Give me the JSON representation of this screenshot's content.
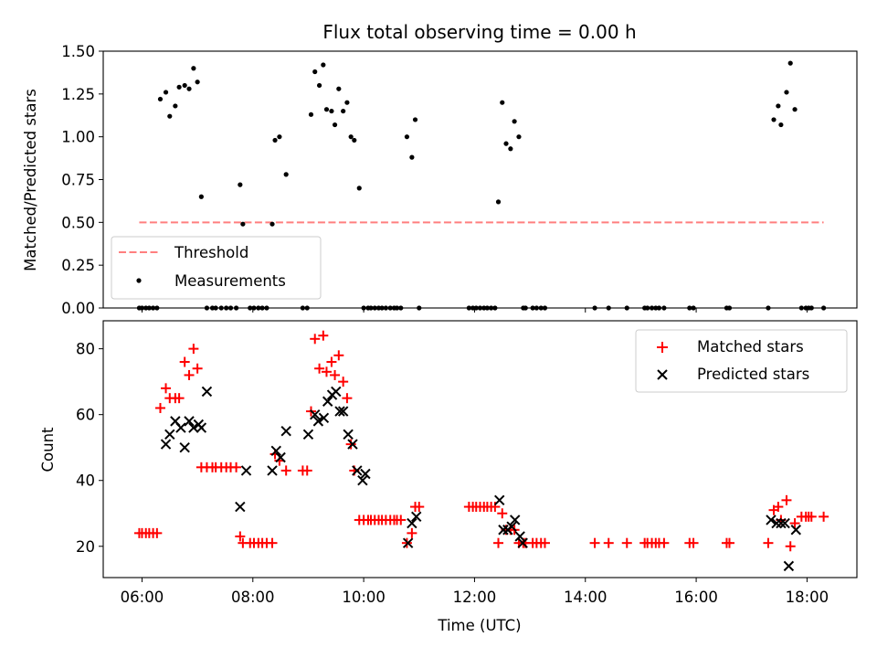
{
  "chart_data": [
    {
      "type": "scatter",
      "title": "Flux total observing time = 0.00 h",
      "xlabel": "",
      "ylabel": "Matched/Predicted stars",
      "xlim": [
        5.3,
        18.9
      ],
      "ylim": [
        0,
        1.5
      ],
      "yticks": [
        0,
        0.25,
        0.5,
        0.75,
        1.0,
        1.25,
        1.5
      ],
      "ytick_labels": [
        "0.00",
        "0.25",
        "0.50",
        "0.75",
        "1.00",
        "1.25",
        "1.50"
      ],
      "threshold": {
        "name": "Threshold",
        "y": 0.5,
        "x_range": [
          5.95,
          18.3
        ],
        "color": "#ff7f7f"
      },
      "series": [
        {
          "name": "Measurements",
          "color": "#000000",
          "x": [
            5.95,
            6.0,
            6.07,
            6.13,
            6.2,
            6.27,
            6.33,
            6.43,
            6.5,
            6.6,
            6.67,
            6.77,
            6.85,
            6.93,
            7.0,
            7.07,
            7.17,
            7.27,
            7.33,
            7.43,
            7.52,
            7.6,
            7.7,
            7.77,
            7.82,
            7.95,
            8.02,
            8.1,
            8.17,
            8.25,
            8.35,
            8.4,
            8.48,
            8.6,
            8.9,
            8.98,
            9.05,
            9.12,
            9.2,
            9.27,
            9.33,
            9.42,
            9.48,
            9.55,
            9.63,
            9.7,
            9.77,
            9.83,
            9.92,
            10.0,
            10.08,
            10.13,
            10.2,
            10.27,
            10.33,
            10.4,
            10.48,
            10.55,
            10.6,
            10.67,
            10.78,
            10.87,
            10.93,
            11.0,
            11.9,
            11.97,
            12.03,
            12.1,
            12.17,
            12.23,
            12.3,
            12.37,
            12.43,
            12.5,
            12.57,
            12.65,
            12.72,
            12.8,
            12.88,
            12.92,
            13.05,
            13.12,
            13.2,
            13.27,
            14.17,
            14.42,
            14.75,
            15.07,
            15.12,
            15.2,
            15.27,
            15.33,
            15.42,
            15.88,
            15.95,
            16.55,
            16.6,
            17.3,
            17.4,
            17.48,
            17.53,
            17.63,
            17.7,
            17.78,
            17.9,
            17.98,
            18.03,
            18.08,
            18.3
          ],
          "y": [
            0,
            0,
            0,
            0,
            0,
            0,
            1.22,
            1.26,
            1.12,
            1.18,
            1.29,
            1.3,
            1.28,
            1.4,
            1.32,
            0.65,
            0,
            0,
            0,
            0,
            0,
            0,
            0,
            0.72,
            0.49,
            0,
            0,
            0,
            0,
            0,
            0.49,
            0.98,
            1.0,
            0.78,
            0,
            0,
            1.13,
            1.38,
            1.3,
            1.42,
            1.16,
            1.15,
            1.07,
            1.28,
            1.15,
            1.2,
            1.0,
            0.98,
            0.7,
            0,
            0,
            0,
            0,
            0,
            0,
            0,
            0,
            0,
            0,
            0,
            1.0,
            0.88,
            1.1,
            0,
            0,
            0,
            0,
            0,
            0,
            0,
            0,
            0,
            0.62,
            1.2,
            0.96,
            0.93,
            1.09,
            1.0,
            0,
            0,
            0,
            0,
            0,
            0,
            0,
            0,
            0,
            0,
            0,
            0,
            0,
            0,
            0,
            0,
            0,
            0,
            0,
            0,
            1.1,
            1.18,
            1.07,
            1.26,
            1.43,
            1.16,
            0,
            0,
            0,
            0,
            0
          ]
        }
      ],
      "legend": "lower-left"
    },
    {
      "type": "scatter",
      "title": "",
      "xlabel": "Time (UTC)",
      "ylabel": "Count",
      "xlim": [
        5.3,
        18.9
      ],
      "ylim": [
        10.5,
        88.5
      ],
      "yticks": [
        20,
        40,
        60,
        80
      ],
      "ytick_labels": [
        "20",
        "40",
        "60",
        "80"
      ],
      "xticks": [
        6,
        8,
        10,
        12,
        14,
        16,
        18
      ],
      "xtick_labels": [
        "06:00",
        "08:00",
        "10:00",
        "12:00",
        "14:00",
        "16:00",
        "18:00"
      ],
      "series": [
        {
          "name": "Matched stars",
          "color": "#ff0000",
          "marker": "plus",
          "x": [
            5.95,
            6.0,
            6.07,
            6.13,
            6.2,
            6.27,
            6.33,
            6.43,
            6.5,
            6.6,
            6.67,
            6.77,
            6.85,
            6.93,
            7.0,
            7.07,
            7.17,
            7.27,
            7.33,
            7.43,
            7.52,
            7.6,
            7.7,
            7.77,
            7.82,
            7.95,
            8.02,
            8.1,
            8.17,
            8.25,
            8.35,
            8.4,
            8.48,
            8.6,
            8.9,
            8.98,
            9.05,
            9.12,
            9.2,
            9.27,
            9.33,
            9.42,
            9.48,
            9.55,
            9.63,
            9.7,
            9.77,
            9.83,
            9.92,
            10.0,
            10.08,
            10.13,
            10.2,
            10.27,
            10.33,
            10.4,
            10.48,
            10.55,
            10.6,
            10.67,
            10.78,
            10.87,
            10.93,
            11.0,
            11.9,
            11.97,
            12.03,
            12.1,
            12.17,
            12.23,
            12.3,
            12.37,
            12.43,
            12.5,
            12.57,
            12.65,
            12.72,
            12.8,
            12.88,
            12.92,
            13.05,
            13.12,
            13.2,
            13.27,
            14.17,
            14.42,
            14.75,
            15.07,
            15.12,
            15.2,
            15.27,
            15.33,
            15.42,
            15.88,
            15.95,
            16.55,
            16.6,
            17.3,
            17.4,
            17.48,
            17.53,
            17.63,
            17.7,
            17.78,
            17.9,
            17.98,
            18.03,
            18.08,
            18.3
          ],
          "y": [
            24,
            24,
            24,
            24,
            24,
            24,
            62,
            68,
            65,
            65,
            65,
            76,
            72,
            80,
            74,
            44,
            44,
            44,
            44,
            44,
            44,
            44,
            44,
            23,
            21,
            21,
            21,
            21,
            21,
            21,
            21,
            48,
            46,
            43,
            43,
            43,
            61,
            83,
            74,
            84,
            73,
            76,
            72,
            78,
            70,
            65,
            51,
            43,
            28,
            28,
            28,
            28,
            28,
            28,
            28,
            28,
            28,
            28,
            28,
            28,
            21,
            24,
            32,
            32,
            32,
            32,
            32,
            32,
            32,
            32,
            32,
            32,
            21,
            30,
            25,
            25,
            25,
            21,
            21,
            21,
            21,
            21,
            21,
            21,
            21,
            21,
            21,
            21,
            21,
            21,
            21,
            21,
            21,
            21,
            21,
            21,
            21,
            21,
            31,
            32,
            28,
            34,
            20,
            27,
            29,
            29,
            29,
            29,
            29
          ]
        },
        {
          "name": "Predicted stars",
          "color": "#000000",
          "marker": "x",
          "x": [
            6.43,
            6.5,
            6.6,
            6.7,
            6.77,
            6.85,
            6.93,
            7.02,
            7.07,
            7.17,
            7.77,
            7.88,
            8.35,
            8.42,
            8.5,
            8.6,
            9.0,
            9.12,
            9.18,
            9.28,
            9.35,
            9.43,
            9.5,
            9.57,
            9.63,
            9.72,
            9.8,
            9.88,
            9.98,
            10.03,
            10.8,
            10.87,
            10.95,
            12.45,
            12.52,
            12.6,
            12.67,
            12.73,
            12.82,
            12.87,
            17.35,
            17.45,
            17.53,
            17.6,
            17.67,
            17.8
          ],
          "y": [
            51,
            54,
            58,
            56,
            50,
            58,
            56,
            57,
            56,
            67,
            32,
            43,
            43,
            49,
            47,
            55,
            54,
            60,
            58,
            59,
            64,
            66,
            67,
            61,
            61,
            54,
            51,
            43,
            40,
            42,
            21,
            27,
            29,
            34,
            25,
            25,
            26,
            28,
            23,
            21,
            28,
            27,
            27,
            27,
            14,
            25
          ]
        }
      ],
      "legend": "top-right"
    }
  ]
}
